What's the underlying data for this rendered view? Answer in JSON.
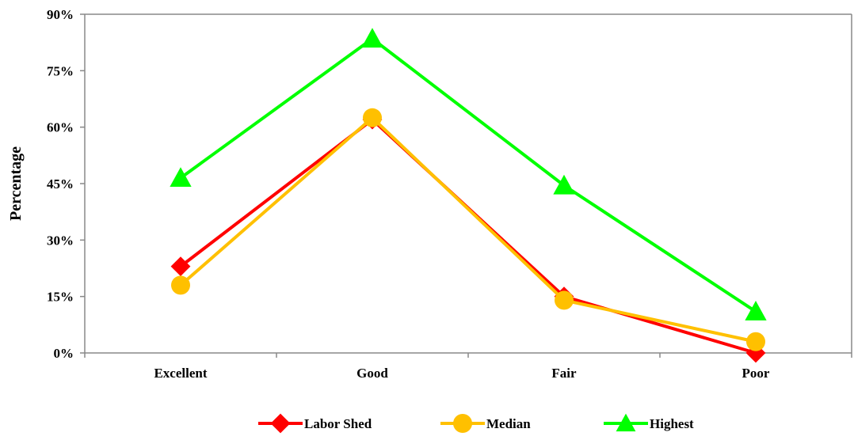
{
  "chart_data": {
    "type": "line",
    "ylabel": "Percentage",
    "categories": [
      "Excellent",
      "Good",
      "Fair",
      "Poor"
    ],
    "y_ticks": [
      "0%",
      "15%",
      "30%",
      "45%",
      "60%",
      "75%",
      "90%"
    ],
    "ylim": [
      0,
      90
    ],
    "grid": false,
    "legend_position": "bottom",
    "series": [
      {
        "name": "Labor Shed",
        "color": "#ff0000",
        "marker": "diamond",
        "values": [
          23,
          62,
          15,
          0
        ]
      },
      {
        "name": "Median",
        "color": "#ffc000",
        "marker": "circle",
        "values": [
          18,
          62.5,
          14,
          3
        ]
      },
      {
        "name": "Highest",
        "color": "#00ff00",
        "marker": "triangle",
        "values": [
          46.5,
          83.5,
          44.5,
          11
        ]
      }
    ]
  }
}
